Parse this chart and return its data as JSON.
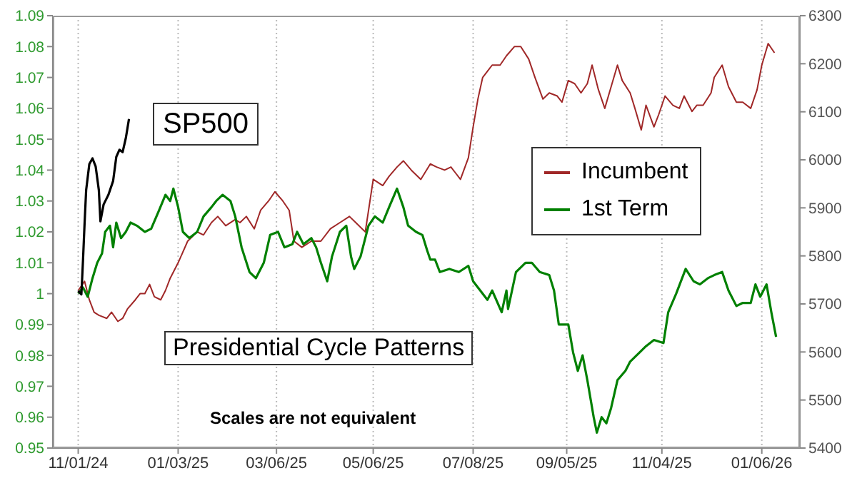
{
  "chart_data": {
    "type": "line",
    "annotations": [
      "Presidential Cycle Patterns",
      "Scales are not equivalent"
    ],
    "xlim": [
      "2024-10-16",
      "2026-01-30"
    ],
    "xticks": [
      {
        "value": "2024-11-01",
        "label": "11/01/24"
      },
      {
        "value": "2025-01-03",
        "label": "01/03/25"
      },
      {
        "value": "2025-03-06",
        "label": "03/06/25"
      },
      {
        "value": "2025-05-06",
        "label": "05/06/25"
      },
      {
        "value": "2025-07-08",
        "label": "07/08/25"
      },
      {
        "value": "2025-09-05",
        "label": "09/05/25"
      },
      {
        "value": "2025-11-04",
        "label": "11/04/25"
      },
      {
        "value": "2026-01-06",
        "label": "01/06/26"
      }
    ],
    "ylim": [
      0.95,
      1.09
    ],
    "yticks": [
      0.95,
      0.96,
      0.97,
      0.98,
      0.99,
      1,
      1.01,
      1.02,
      1.03,
      1.04,
      1.05,
      1.06,
      1.07,
      1.08,
      1.09
    ],
    "y2lim": [
      5400,
      6300
    ],
    "y2ticks": [
      5400,
      5500,
      5600,
      5700,
      5800,
      5900,
      6000,
      6100,
      6200,
      6300
    ],
    "grid": "x",
    "legend": "right",
    "series": [
      {
        "name": "Incumbent",
        "color": "#a02828",
        "x": [
          "2024-11-01",
          "2024-11-05",
          "2024-11-08",
          "2024-11-11",
          "2024-11-14",
          "2024-11-19",
          "2024-11-22",
          "2024-11-26",
          "2024-11-29",
          "2024-12-02",
          "2024-12-07",
          "2024-12-10",
          "2024-12-13",
          "2024-12-16",
          "2024-12-19",
          "2024-12-23",
          "2024-12-26",
          "2024-12-29",
          "2025-01-03",
          "2025-01-09",
          "2025-01-15",
          "2025-01-19",
          "2025-01-24",
          "2025-01-28",
          "2025-02-02",
          "2025-02-08",
          "2025-02-11",
          "2025-02-15",
          "2025-02-20",
          "2025-02-24",
          "2025-03-01",
          "2025-03-05",
          "2025-03-10",
          "2025-03-14",
          "2025-03-17",
          "2025-03-22",
          "2025-03-28",
          "2025-04-03",
          "2025-04-09",
          "2025-04-15",
          "2025-04-21",
          "2025-04-25",
          "2025-05-01",
          "2025-05-06",
          "2025-05-12",
          "2025-05-16",
          "2025-05-21",
          "2025-05-25",
          "2025-05-30",
          "2025-06-05",
          "2025-06-11",
          "2025-06-15",
          "2025-06-20",
          "2025-06-24",
          "2025-06-27",
          "2025-06-30",
          "2025-07-05",
          "2025-07-08",
          "2025-07-11",
          "2025-07-14",
          "2025-07-17",
          "2025-07-20",
          "2025-07-25",
          "2025-07-29",
          "2025-08-03",
          "2025-08-07",
          "2025-08-12",
          "2025-08-16",
          "2025-08-21",
          "2025-08-25",
          "2025-08-30",
          "2025-09-02",
          "2025-09-06",
          "2025-09-10",
          "2025-09-14",
          "2025-09-18",
          "2025-09-21",
          "2025-09-25",
          "2025-09-29",
          "2025-10-03",
          "2025-10-07",
          "2025-10-10",
          "2025-10-15",
          "2025-10-18",
          "2025-10-22",
          "2025-10-25",
          "2025-10-30",
          "2025-11-02",
          "2025-11-06",
          "2025-11-11",
          "2025-11-15",
          "2025-11-18",
          "2025-11-23",
          "2025-11-26",
          "2025-11-30",
          "2025-12-05",
          "2025-12-07",
          "2025-12-12",
          "2025-12-16",
          "2025-12-21",
          "2025-12-25",
          "2025-12-30",
          "2026-01-03",
          "2026-01-06",
          "2026-01-10",
          "2026-01-14"
        ],
        "values": [
          1.001,
          1.004,
          0.998,
          0.994,
          0.993,
          0.992,
          0.994,
          0.991,
          0.992,
          0.995,
          0.998,
          1.0,
          1.0,
          1.003,
          0.999,
          0.998,
          1.001,
          1.005,
          1.01,
          1.017,
          1.02,
          1.019,
          1.023,
          1.025,
          1.022,
          1.024,
          1.023,
          1.025,
          1.021,
          1.027,
          1.03,
          1.033,
          1.03,
          1.027,
          1.017,
          1.015,
          1.017,
          1.017,
          1.021,
          1.023,
          1.025,
          1.023,
          1.02,
          1.037,
          1.035,
          1.038,
          1.041,
          1.043,
          1.04,
          1.037,
          1.042,
          1.041,
          1.04,
          1.041,
          1.039,
          1.037,
          1.044,
          1.054,
          1.063,
          1.07,
          1.072,
          1.074,
          1.074,
          1.077,
          1.08,
          1.08,
          1.076,
          1.07,
          1.063,
          1.065,
          1.064,
          1.062,
          1.069,
          1.068,
          1.065,
          1.068,
          1.074,
          1.066,
          1.06,
          1.067,
          1.074,
          1.069,
          1.065,
          1.06,
          1.053,
          1.061,
          1.054,
          1.058,
          1.064,
          1.061,
          1.06,
          1.064,
          1.059,
          1.061,
          1.061,
          1.065,
          1.07,
          1.074,
          1.067,
          1.062,
          1.062,
          1.06,
          1.066,
          1.074,
          1.081,
          1.078
        ]
      },
      {
        "name": "1st Term",
        "color": "#008000",
        "x": [
          "2024-11-01",
          "2024-11-04",
          "2024-11-07",
          "2024-11-10",
          "2024-11-13",
          "2024-11-16",
          "2024-11-18",
          "2024-11-21",
          "2024-11-23",
          "2024-11-25",
          "2024-11-28",
          "2024-12-01",
          "2024-12-04",
          "2024-12-08",
          "2024-12-13",
          "2024-12-17",
          "2024-12-22",
          "2024-12-26",
          "2024-12-29",
          "2024-12-31",
          "2025-01-03",
          "2025-01-06",
          "2025-01-10",
          "2025-01-15",
          "2025-01-19",
          "2025-01-24",
          "2025-01-27",
          "2025-01-31",
          "2025-02-05",
          "2025-02-08",
          "2025-02-12",
          "2025-02-17",
          "2025-02-21",
          "2025-02-26",
          "2025-03-02",
          "2025-03-07",
          "2025-03-11",
          "2025-03-16",
          "2025-03-19",
          "2025-03-23",
          "2025-03-28",
          "2025-03-31",
          "2025-04-03",
          "2025-04-07",
          "2025-04-10",
          "2025-04-15",
          "2025-04-19",
          "2025-04-22",
          "2025-04-24",
          "2025-04-28",
          "2025-05-03",
          "2025-05-07",
          "2025-05-12",
          "2025-05-16",
          "2025-05-21",
          "2025-05-25",
          "2025-05-28",
          "2025-06-02",
          "2025-06-06",
          "2025-06-09",
          "2025-06-11",
          "2025-06-14",
          "2025-06-17",
          "2025-06-23",
          "2025-06-29",
          "2025-07-05",
          "2025-07-08",
          "2025-07-17",
          "2025-07-20",
          "2025-07-26",
          "2025-07-29",
          "2025-07-30",
          "2025-08-04",
          "2025-08-10",
          "2025-08-14",
          "2025-08-19",
          "2025-08-25",
          "2025-08-28",
          "2025-08-31",
          "2025-09-06",
          "2025-09-09",
          "2025-09-12",
          "2025-09-15",
          "2025-09-18",
          "2025-09-22",
          "2025-09-24",
          "2025-09-27",
          "2025-09-30",
          "2025-10-03",
          "2025-10-07",
          "2025-10-12",
          "2025-10-15",
          "2025-10-21",
          "2025-10-25",
          "2025-10-30",
          "2025-11-05",
          "2025-11-08",
          "2025-11-13",
          "2025-11-19",
          "2025-11-24",
          "2025-11-28",
          "2025-12-03",
          "2025-12-07",
          "2025-12-12",
          "2025-12-16",
          "2025-12-21",
          "2025-12-25",
          "2025-12-30",
          "2026-01-02",
          "2026-01-05",
          "2026-01-09",
          "2026-01-12",
          "2026-01-15"
        ],
        "values": [
          1.0,
          1.002,
          0.999,
          1.005,
          1.01,
          1.013,
          1.02,
          1.022,
          1.015,
          1.023,
          1.018,
          1.02,
          1.023,
          1.022,
          1.02,
          1.021,
          1.027,
          1.032,
          1.03,
          1.034,
          1.028,
          1.02,
          1.018,
          1.02,
          1.025,
          1.028,
          1.03,
          1.032,
          1.03,
          1.025,
          1.015,
          1.007,
          1.005,
          1.01,
          1.019,
          1.02,
          1.015,
          1.016,
          1.02,
          1.016,
          1.018,
          1.015,
          1.01,
          1.004,
          1.012,
          1.02,
          1.022,
          1.012,
          1.008,
          1.012,
          1.022,
          1.025,
          1.023,
          1.028,
          1.034,
          1.028,
          1.022,
          1.02,
          1.019,
          1.014,
          1.011,
          1.011,
          1.007,
          1.008,
          1.007,
          1.009,
          1.004,
          0.998,
          1.001,
          0.994,
          1.001,
          0.995,
          1.007,
          1.01,
          1.01,
          1.007,
          1.006,
          1.001,
          0.99,
          0.99,
          0.981,
          0.975,
          0.98,
          0.972,
          0.96,
          0.955,
          0.96,
          0.958,
          0.963,
          0.972,
          0.975,
          0.978,
          0.981,
          0.983,
          0.985,
          0.984,
          0.994,
          1.0,
          1.008,
          1.004,
          1.003,
          1.005,
          1.006,
          1.007,
          1.001,
          0.996,
          0.997,
          0.997,
          1.003,
          0.999,
          1.003,
          0.994,
          0.986
        ]
      },
      {
        "name": "SP500",
        "color": "#000000",
        "axis": "y2",
        "x": [
          "2024-11-01",
          "2024-11-03",
          "2024-11-04",
          "2024-11-05",
          "2024-11-06",
          "2024-11-08",
          "2024-11-10",
          "2024-11-12",
          "2024-11-14",
          "2024-11-15",
          "2024-11-17",
          "2024-11-20",
          "2024-11-23",
          "2024-11-25",
          "2024-11-27",
          "2024-11-29",
          "2024-12-01",
          "2024-12-03"
        ],
        "values": [
          5727,
          5720,
          5790,
          5867,
          5937,
          5991,
          6003,
          5986,
          5937,
          5872,
          5907,
          5927,
          5956,
          6006,
          6021,
          6016,
          6045,
          6085
        ]
      }
    ]
  }
}
